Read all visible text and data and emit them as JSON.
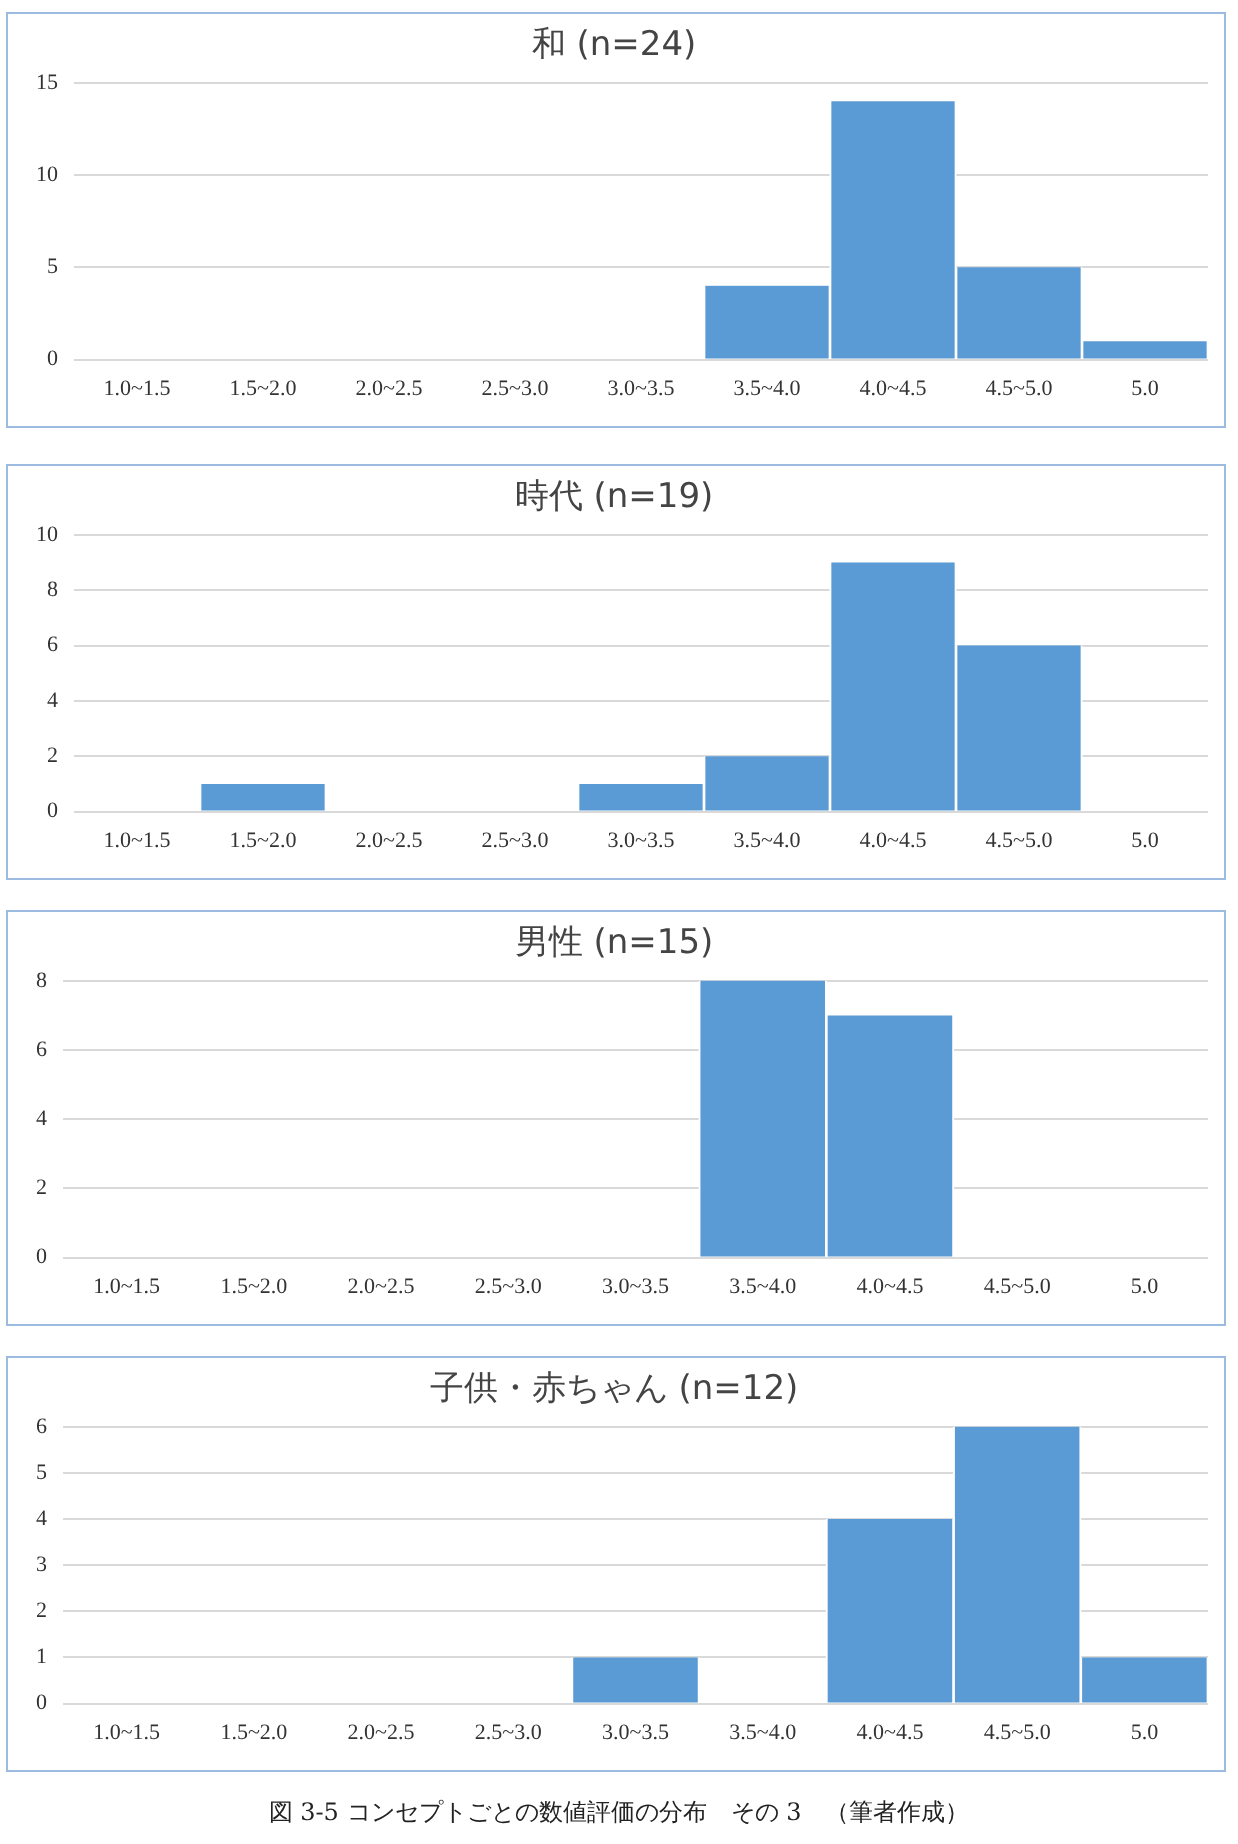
{
  "chart_data": [
    {
      "type": "bar",
      "title": "和 (n=24)",
      "categories": [
        "1.0~1.5",
        "1.5~2.0",
        "2.0~2.5",
        "2.5~3.0",
        "3.0~3.5",
        "3.5~4.0",
        "4.0~4.5",
        "4.5~5.0",
        "5.0"
      ],
      "values": [
        0,
        0,
        0,
        0,
        0,
        4,
        14,
        5,
        1
      ],
      "color": "#5b9bd5",
      "ylim": [
        0,
        15
      ],
      "yticks": [
        0,
        5,
        10,
        15
      ],
      "grid": "y"
    },
    {
      "type": "bar",
      "title": "時代 (n=19)",
      "categories": [
        "1.0~1.5",
        "1.5~2.0",
        "2.0~2.5",
        "2.5~3.0",
        "3.0~3.5",
        "3.5~4.0",
        "4.0~4.5",
        "4.5~5.0",
        "5.0"
      ],
      "values": [
        0,
        1,
        0,
        0,
        1,
        2,
        9,
        6,
        0
      ],
      "color": "#5b9bd5",
      "ylim": [
        0,
        10
      ],
      "yticks": [
        0,
        2,
        4,
        6,
        8,
        10
      ],
      "grid": "y"
    },
    {
      "type": "bar",
      "title": "男性 (n=15)",
      "categories": [
        "1.0~1.5",
        "1.5~2.0",
        "2.0~2.5",
        "2.5~3.0",
        "3.0~3.5",
        "3.5~4.0",
        "4.0~4.5",
        "4.5~5.0",
        "5.0"
      ],
      "values": [
        0,
        0,
        0,
        0,
        0,
        8,
        7,
        0,
        0
      ],
      "color": "#5b9bd5",
      "ylim": [
        0,
        8
      ],
      "yticks": [
        0,
        2,
        4,
        6,
        8
      ],
      "grid": "y"
    },
    {
      "type": "bar",
      "title": "子供・赤ちゃん (n=12)",
      "categories": [
        "1.0~1.5",
        "1.5~2.0",
        "2.0~2.5",
        "2.5~3.0",
        "3.0~3.5",
        "3.5~4.0",
        "4.0~4.5",
        "4.5~5.0",
        "5.0"
      ],
      "values": [
        0,
        0,
        0,
        0,
        1,
        0,
        4,
        6,
        1
      ],
      "color": "#5b9bd5",
      "ylim": [
        0,
        6
      ],
      "yticks": [
        0,
        1,
        2,
        3,
        4,
        5,
        6
      ],
      "grid": "y",
      "annotations": [
        "図 3-5 コンセプトごとの数値評価の分布　その 3　（筆者作成）"
      ]
    }
  ]
}
